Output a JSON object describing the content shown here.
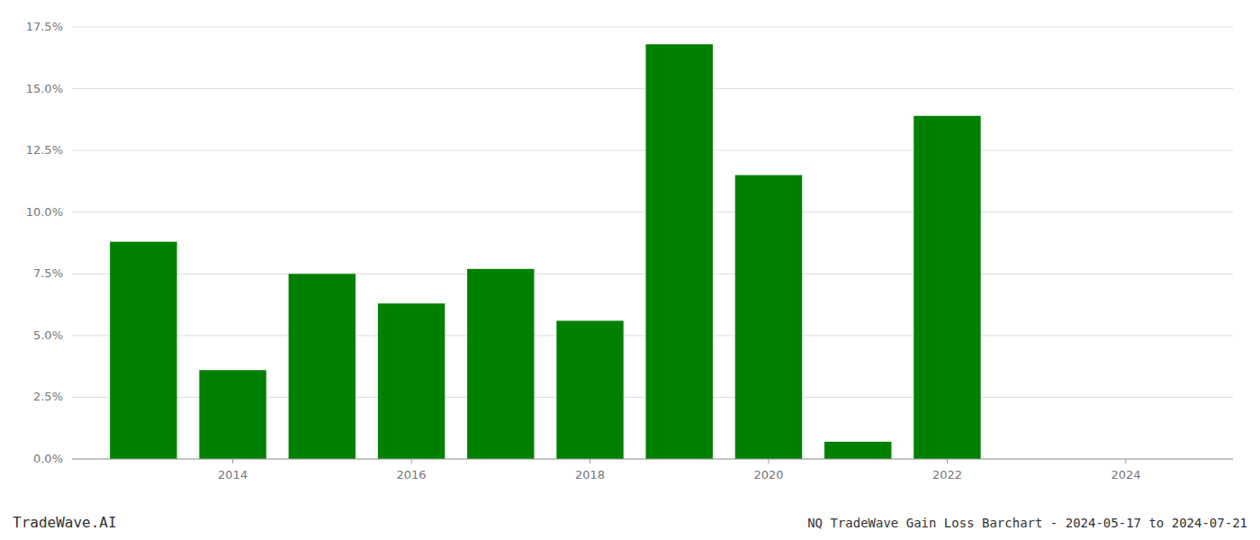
{
  "chart_data": {
    "type": "bar",
    "title": "NQ TradeWave Gain Loss Barchart - 2024-05-17 to 2024-07-21",
    "annotations": [
      "TradeWave.AI"
    ],
    "x": [
      2013,
      2014,
      2015,
      2016,
      2017,
      2018,
      2019,
      2020,
      2021,
      2022,
      2023
    ],
    "values": [
      0.088,
      0.036,
      0.075,
      0.063,
      0.077,
      0.056,
      0.168,
      0.115,
      0.007,
      0.139,
      0.0
    ],
    "color": "#008000",
    "xlim": [
      2012.2,
      2025.2
    ],
    "xticks": [
      2014,
      2016,
      2018,
      2020,
      2022,
      2024
    ],
    "ylim": [
      0.0,
      0.175
    ],
    "yticks": [
      {
        "value": 0.0,
        "label": "0.0%"
      },
      {
        "value": 0.025,
        "label": "2.5%"
      },
      {
        "value": 0.05,
        "label": "5.0%"
      },
      {
        "value": 0.075,
        "label": "7.5%"
      },
      {
        "value": 0.1,
        "label": "10.0%"
      },
      {
        "value": 0.125,
        "label": "12.5%"
      },
      {
        "value": 0.15,
        "label": "15.0%"
      },
      {
        "value": 0.175,
        "label": "17.5%"
      }
    ],
    "grid": true
  }
}
